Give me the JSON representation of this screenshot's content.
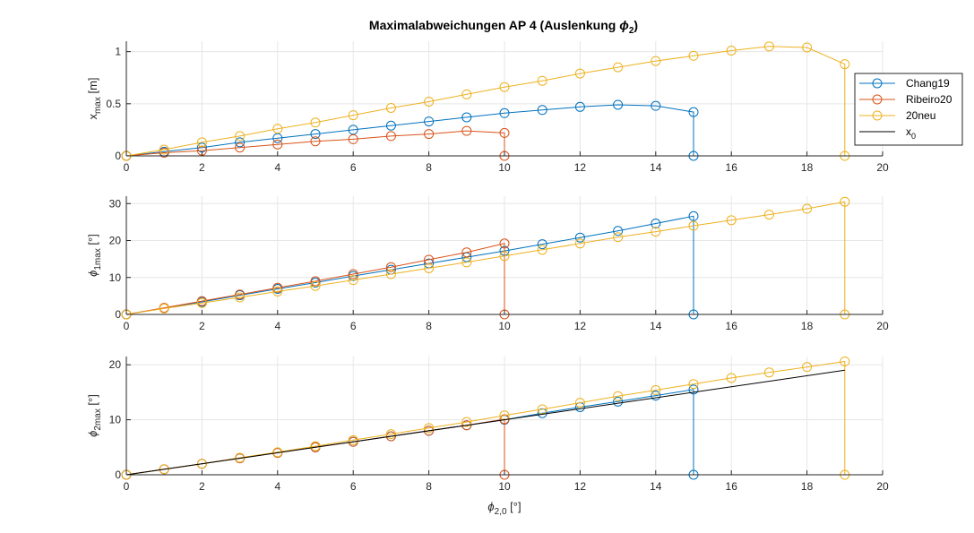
{
  "figure": {
    "title_main": "Maximalabweichungen AP 4 (Auslenkung ",
    "title_sym": "ϕ",
    "title_sub": "2",
    "title_end": ")"
  },
  "colors": {
    "Chang19": "#0072BD",
    "Ribeiro20": "#D95319",
    "20neu": "#EDB120",
    "x_0": "#000000"
  },
  "legend": {
    "entries": [
      {
        "key": "Chang19",
        "label": "Chang19",
        "sub": ""
      },
      {
        "key": "Ribeiro20",
        "label": "Ribeiro20",
        "sub": ""
      },
      {
        "key": "20neu",
        "label": "20neu",
        "sub": ""
      },
      {
        "key": "x_0",
        "label": "x",
        "sub": "0"
      }
    ]
  },
  "chart_data": [
    {
      "type": "line",
      "ylabel": {
        "main": "x",
        "sub": "max",
        "unit": " [m]"
      },
      "xlim": [
        0,
        20
      ],
      "ylim": [
        0,
        1.1
      ],
      "xticks": [
        0,
        2,
        4,
        6,
        8,
        10,
        12,
        14,
        16,
        18,
        20
      ],
      "yticks": [
        0,
        0.5,
        1
      ],
      "ytick_labels": [
        "0",
        "0.5",
        "1"
      ],
      "grid": true,
      "legend_placement": "right",
      "series": [
        {
          "name": "Chang19",
          "markers": true,
          "x": [
            0,
            1,
            2,
            3,
            4,
            5,
            6,
            7,
            8,
            9,
            10,
            11,
            12,
            13,
            14,
            15,
            15
          ],
          "y": [
            0,
            0.04,
            0.08,
            0.13,
            0.17,
            0.21,
            0.25,
            0.29,
            0.33,
            0.37,
            0.41,
            0.44,
            0.47,
            0.49,
            0.48,
            0.42,
            0
          ]
        },
        {
          "name": "Ribeiro20",
          "markers": true,
          "x": [
            0,
            1,
            2,
            3,
            4,
            5,
            6,
            7,
            8,
            9,
            10,
            10
          ],
          "y": [
            0,
            0.03,
            0.05,
            0.08,
            0.11,
            0.14,
            0.16,
            0.19,
            0.21,
            0.24,
            0.22,
            0
          ]
        },
        {
          "name": "20neu",
          "markers": true,
          "x": [
            0,
            1,
            2,
            3,
            4,
            5,
            6,
            7,
            8,
            9,
            10,
            11,
            12,
            13,
            14,
            15,
            16,
            17,
            18,
            19,
            19
          ],
          "y": [
            0,
            0.06,
            0.13,
            0.19,
            0.26,
            0.32,
            0.39,
            0.46,
            0.52,
            0.59,
            0.66,
            0.72,
            0.79,
            0.85,
            0.91,
            0.96,
            1.01,
            1.05,
            1.04,
            0.88,
            0
          ]
        },
        {
          "name": "x_0",
          "markers": false,
          "x": [
            0,
            19
          ],
          "y": [
            0,
            0
          ]
        }
      ]
    },
    {
      "type": "line",
      "ylabel": {
        "main": "ϕ",
        "sub": "1max",
        "unit": " [°]"
      },
      "xlim": [
        0,
        20
      ],
      "ylim": [
        0,
        32
      ],
      "xticks": [
        0,
        2,
        4,
        6,
        8,
        10,
        12,
        14,
        16,
        18,
        20
      ],
      "yticks": [
        0,
        10,
        20,
        30
      ],
      "ytick_labels": [
        "0",
        "10",
        "20",
        "30"
      ],
      "grid": true,
      "series": [
        {
          "name": "Chang19",
          "markers": true,
          "x": [
            0,
            1,
            2,
            3,
            4,
            5,
            6,
            7,
            8,
            9,
            10,
            11,
            12,
            13,
            14,
            15,
            15
          ],
          "y": [
            0,
            1.7,
            3.4,
            5.2,
            6.9,
            8.6,
            10.4,
            12.1,
            13.8,
            15.5,
            17.2,
            19.0,
            20.8,
            22.6,
            24.6,
            26.6,
            0
          ]
        },
        {
          "name": "Ribeiro20",
          "markers": true,
          "x": [
            0,
            1,
            2,
            3,
            4,
            5,
            6,
            7,
            8,
            9,
            10,
            10
          ],
          "y": [
            0,
            1.8,
            3.6,
            5.4,
            7.2,
            9.0,
            10.9,
            12.8,
            14.8,
            16.8,
            19.2,
            0
          ]
        },
        {
          "name": "20neu",
          "markers": true,
          "x": [
            0,
            1,
            2,
            3,
            4,
            5,
            6,
            7,
            8,
            9,
            10,
            11,
            12,
            13,
            14,
            15,
            16,
            17,
            18,
            19,
            19
          ],
          "y": [
            0,
            1.6,
            3.1,
            4.6,
            6.2,
            7.7,
            9.3,
            10.9,
            12.5,
            14.1,
            15.8,
            17.5,
            19.2,
            20.9,
            22.4,
            24.0,
            25.5,
            27.0,
            28.6,
            30.5,
            0
          ]
        },
        {
          "name": "x_0",
          "markers": false,
          "x": [
            0,
            19
          ],
          "y": [
            0,
            0
          ]
        }
      ]
    },
    {
      "type": "line",
      "ylabel": {
        "main": "ϕ",
        "sub": "2max",
        "unit": " [°]"
      },
      "xlabel": {
        "main": "ϕ",
        "sub": "2,0",
        "unit": " [°]"
      },
      "xlim": [
        0,
        20
      ],
      "ylim": [
        0,
        21.5
      ],
      "xticks": [
        0,
        2,
        4,
        6,
        8,
        10,
        12,
        14,
        16,
        18,
        20
      ],
      "yticks": [
        0,
        10,
        20
      ],
      "ytick_labels": [
        "0",
        "10",
        "20"
      ],
      "grid": true,
      "series": [
        {
          "name": "Chang19",
          "markers": true,
          "x": [
            0,
            1,
            2,
            3,
            4,
            5,
            6,
            7,
            8,
            9,
            10,
            11,
            12,
            13,
            14,
            15,
            15
          ],
          "y": [
            0,
            1,
            2,
            3,
            4,
            5.0,
            6.0,
            7.0,
            8.0,
            9.0,
            10.0,
            11.2,
            12.3,
            13.3,
            14.4,
            15.5,
            0
          ]
        },
        {
          "name": "Ribeiro20",
          "markers": true,
          "x": [
            0,
            1,
            2,
            3,
            4,
            5,
            6,
            7,
            8,
            9,
            10,
            10
          ],
          "y": [
            0,
            1,
            2,
            3,
            4,
            5.0,
            6.0,
            7.0,
            8.0,
            9.0,
            10.1,
            0
          ]
        },
        {
          "name": "20neu",
          "markers": true,
          "x": [
            0,
            1,
            2,
            3,
            4,
            5,
            6,
            7,
            8,
            9,
            10,
            11,
            12,
            13,
            14,
            15,
            16,
            17,
            18,
            19,
            19
          ],
          "y": [
            0,
            1,
            2,
            3.1,
            4.1,
            5.2,
            6.3,
            7.4,
            8.5,
            9.6,
            10.8,
            11.9,
            13.1,
            14.3,
            15.4,
            16.5,
            17.6,
            18.6,
            19.6,
            20.6,
            0
          ]
        },
        {
          "name": "x_0",
          "markers": false,
          "x": [
            0,
            19
          ],
          "y": [
            0,
            19
          ]
        }
      ]
    }
  ]
}
